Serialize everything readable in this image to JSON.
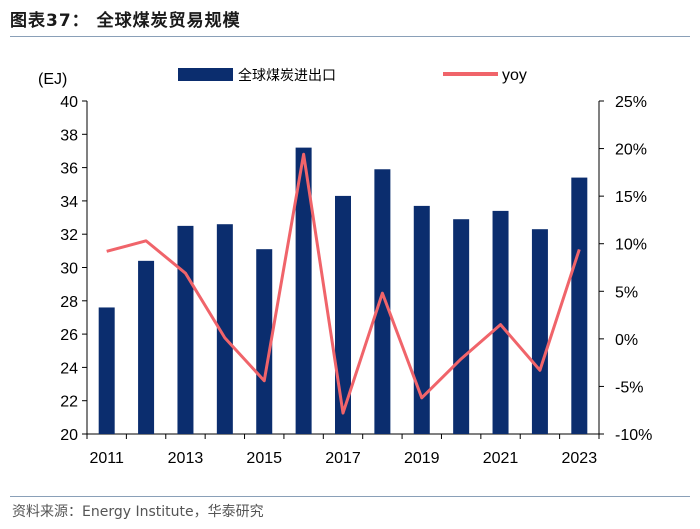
{
  "header": {
    "title": "图表37：  全球煤炭贸易规模"
  },
  "footer": {
    "source": "资料来源：Energy Institute，华泰研究"
  },
  "colors": {
    "bar": "#0b2d6e",
    "line": "#f0646a",
    "axis": "#000000",
    "rule": "#8aa0b8"
  },
  "chart_data": {
    "type": "bar+line",
    "unit_label": "(EJ)",
    "x": [
      2011,
      2012,
      2013,
      2014,
      2015,
      2016,
      2017,
      2018,
      2019,
      2020,
      2021,
      2022,
      2023
    ],
    "x_tick_labels": [
      "2011",
      "2013",
      "2015",
      "2017",
      "2019",
      "2021",
      "2023"
    ],
    "series": [
      {
        "name": "全球煤炭进出口",
        "type": "bar",
        "axis": "left",
        "values": [
          27.6,
          30.4,
          32.5,
          32.6,
          31.1,
          37.2,
          34.3,
          35.9,
          33.7,
          32.9,
          33.4,
          32.3,
          35.4
        ]
      },
      {
        "name": "yoy",
        "type": "line",
        "axis": "right",
        "values": [
          9.2,
          10.3,
          6.9,
          0.1,
          -4.4,
          19.4,
          -7.8,
          4.8,
          -6.2,
          -2.1,
          1.5,
          -3.3,
          9.4
        ]
      }
    ],
    "y_left": {
      "min": 20,
      "max": 40,
      "step": 2,
      "tick_labels": [
        "20",
        "22",
        "24",
        "26",
        "28",
        "30",
        "32",
        "34",
        "36",
        "38",
        "40"
      ]
    },
    "y_right": {
      "min": -10,
      "max": 25,
      "step": 5,
      "tick_labels": [
        "-10%",
        "-5%",
        "0%",
        "5%",
        "10%",
        "15%",
        "20%",
        "25%"
      ]
    },
    "legend": {
      "placement": "top"
    }
  }
}
